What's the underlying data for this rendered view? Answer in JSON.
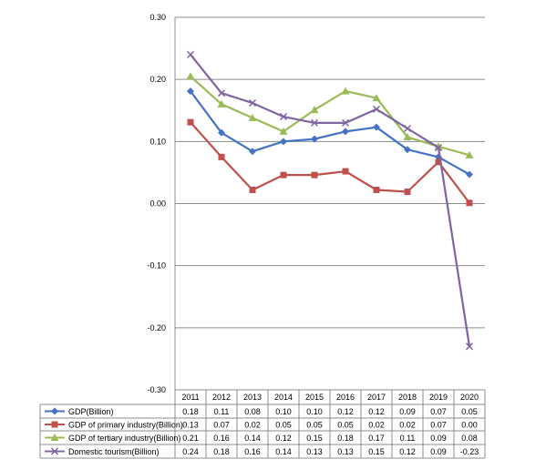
{
  "chart_data": {
    "type": "line",
    "categories": [
      "2011",
      "2012",
      "2013",
      "2014",
      "2015",
      "2016",
      "2017",
      "2018",
      "2019",
      "2020"
    ],
    "ylim": [
      -0.3,
      0.3
    ],
    "yticks": [
      "0.30",
      "0.20",
      "0.10",
      "0.00",
      "-0.10",
      "-0.20",
      "-0.30"
    ],
    "grid": true,
    "legend_placement": "data table below plot",
    "series": [
      {
        "name": "GDP(Billion)",
        "color": "#4472C4",
        "marker": "diamond",
        "values": [
          0.181,
          0.114,
          0.084,
          0.1,
          0.104,
          0.116,
          0.123,
          0.087,
          0.075,
          0.047
        ],
        "table": [
          "0.18",
          "0.11",
          "0.08",
          "0.10",
          "0.10",
          "0.12",
          "0.12",
          "0.09",
          "0.07",
          "0.05"
        ]
      },
      {
        "name": "GDP of primary industry(Billion)",
        "color": "#C0504D",
        "marker": "square",
        "values": [
          0.131,
          0.075,
          0.022,
          0.046,
          0.046,
          0.052,
          0.022,
          0.019,
          0.067,
          0.001
        ],
        "table": [
          "0.13",
          "0.07",
          "0.02",
          "0.05",
          "0.05",
          "0.05",
          "0.02",
          "0.02",
          "0.07",
          "0.00"
        ]
      },
      {
        "name": "GDP of tertiary industry(Billion)",
        "color": "#9BBB59",
        "marker": "triangle",
        "values": [
          0.205,
          0.16,
          0.138,
          0.116,
          0.151,
          0.181,
          0.17,
          0.107,
          0.092,
          0.078
        ],
        "table": [
          "0.21",
          "0.16",
          "0.14",
          "0.12",
          "0.15",
          "0.18",
          "0.17",
          "0.11",
          "0.09",
          "0.08"
        ]
      },
      {
        "name": "Domestic tourism(Billion)",
        "color": "#8064A2",
        "marker": "x",
        "values": [
          0.24,
          0.178,
          0.162,
          0.14,
          0.13,
          0.13,
          0.152,
          0.121,
          0.09,
          -0.23
        ],
        "table": [
          "0.24",
          "0.18",
          "0.16",
          "0.14",
          "0.13",
          "0.13",
          "0.15",
          "0.12",
          "0.09",
          "-0.23"
        ]
      }
    ]
  }
}
